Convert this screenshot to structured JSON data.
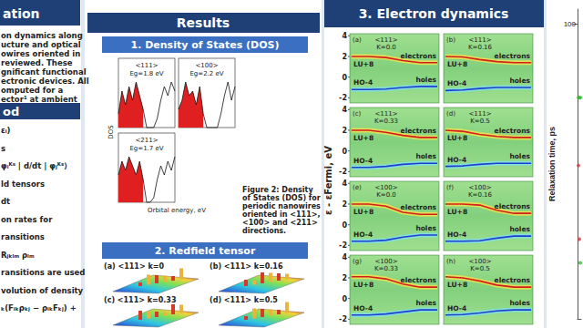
{
  "left_column": {
    "header": "ation",
    "intro_lines": [
      "on dynamics along",
      "ucture and optical",
      "owires oriented in",
      "reviewed. These",
      "gnificant functional",
      "ectronic devices. All",
      "omputed for a",
      "ector¹ at ambient"
    ],
    "method_header": "od",
    "method_lines": [
      "εᵢ)",
      "s",
      "φᵢᴷˢ | d/dt | φⱼᴷˢ⟩",
      "ld tensors",
      "dt",
      "on rates for",
      "ransitions",
      "Rⱼₖₗₘ ρₗₘ",
      "ransitions are used",
      "volution of density",
      "ₖ(Fᵢₖρₖⱼ − ρᵢₖFₖⱼ) +"
    ]
  },
  "results_header": "Results",
  "dos": {
    "title": "1. Density of States (DOS)",
    "ylabel": "DOS",
    "xlabel": "Orbital energy, eV",
    "energies": [
      -4,
      -3.5,
      -3,
      -2.5,
      -2,
      -1.5,
      -1,
      -0.5,
      0,
      0.5,
      1,
      1.5,
      2,
      2.5,
      3,
      3.5,
      4
    ],
    "panels": [
      {
        "label": "<111>",
        "gap": "Eg=1.8 eV",
        "filled": [
          0.3,
          0.8,
          0.5,
          0.9,
          0.6,
          1.0,
          0.7,
          0.4,
          null,
          null,
          null,
          null,
          null,
          null,
          null,
          null,
          null
        ],
        "line": [
          0.3,
          0.8,
          0.5,
          0.9,
          0.6,
          1.0,
          0.7,
          0.4,
          0,
          0,
          0,
          0.2,
          0.6,
          0.9,
          0.7,
          1.0,
          0.8
        ]
      },
      {
        "label": "<100>",
        "gap": "Eg=2.2 eV",
        "filled": [
          0.4,
          0.6,
          1.0,
          0.7,
          0.8,
          0.5,
          0.9,
          0.3,
          null,
          null,
          null,
          null,
          null,
          null,
          null,
          null,
          null
        ],
        "line": [
          0.4,
          0.6,
          1.0,
          0.7,
          0.8,
          0.5,
          0.9,
          0.3,
          0,
          0,
          0,
          0,
          0.3,
          0.7,
          1.0,
          0.6,
          0.9
        ]
      },
      {
        "label": "<211>",
        "gap": "Eg=1.7 eV",
        "filled": [
          0.6,
          0.9,
          0.7,
          1.0,
          0.8,
          0.6,
          0.9,
          0.5,
          null,
          null,
          null,
          null,
          null,
          null,
          null,
          null,
          null
        ],
        "line": [
          0.6,
          0.9,
          0.7,
          1.0,
          0.8,
          0.6,
          0.9,
          0.5,
          0,
          0,
          0.1,
          0.5,
          0.8,
          0.6,
          0.9,
          0.7,
          1.0
        ]
      }
    ],
    "caption": "Figure 2: Density of States (DOS) for periodic nanowires oriented in <111>, <100> and <211> directions."
  },
  "redfield": {
    "title": "2. Redfield tensor",
    "panels": [
      "(a) <111> k=0",
      "(b) <111> k=0.16",
      "(c) <111> k=0.33",
      "(d) <111> k=0.5"
    ]
  },
  "electron_dynamics": {
    "title": "3. Electron dynamics",
    "ylabel": "ε - εFermi, eV",
    "ylim": [
      -2.5,
      4.2
    ],
    "yticks": [
      4,
      2,
      0,
      -2
    ],
    "electron_label": "electrons",
    "hole_label": "holes",
    "electron_level": "LU+8",
    "hole_level": "HO-4",
    "panels": [
      {
        "tag": "(a)",
        "direction": "<111>",
        "k": "K=0.0",
        "electrons": [
          2.0,
          2.0,
          1.9,
          1.6,
          1.4,
          1.4
        ],
        "holes": [
          -1.2,
          -1.2,
          -1.15,
          -1.0,
          -0.9,
          -0.9
        ]
      },
      {
        "tag": "(b)",
        "direction": "<111>",
        "k": "K=0.16",
        "electrons": [
          2.0,
          1.95,
          1.7,
          1.5,
          1.4,
          1.4
        ],
        "holes": [
          -1.3,
          -1.25,
          -1.1,
          -1.0,
          -1.0,
          -1.0
        ]
      },
      {
        "tag": "(c)",
        "direction": "<111>",
        "k": "K=0.33",
        "electrons": [
          2.0,
          2.0,
          1.8,
          1.5,
          1.3,
          1.3
        ],
        "holes": [
          -1.6,
          -1.6,
          -1.5,
          -1.3,
          -1.2,
          -1.2
        ]
      },
      {
        "tag": "(d)",
        "direction": "<111>",
        "k": "K=0.5",
        "electrons": [
          2.0,
          1.9,
          1.6,
          1.4,
          1.3,
          1.3
        ],
        "holes": [
          -1.5,
          -1.45,
          -1.3,
          -1.2,
          -1.2,
          -1.2
        ]
      },
      {
        "tag": "(e)",
        "direction": "<100>",
        "k": "K=0.0",
        "electrons": [
          2.0,
          2.0,
          1.8,
          1.2,
          1.0,
          1.0
        ],
        "holes": [
          -1.6,
          -1.6,
          -1.5,
          -1.2,
          -1.0,
          -1.0
        ]
      },
      {
        "tag": "(f)",
        "direction": "<100>",
        "k": "K=0.16",
        "electrons": [
          2.0,
          2.0,
          1.9,
          1.4,
          1.1,
          1.1
        ],
        "holes": [
          -1.6,
          -1.6,
          -1.55,
          -1.3,
          -1.1,
          -1.1
        ]
      },
      {
        "tag": "(g)",
        "direction": "<100>",
        "k": "K=0.33",
        "electrons": [
          2.1,
          2.1,
          1.9,
          1.4,
          1.1,
          1.1
        ],
        "holes": [
          -1.6,
          -1.6,
          -1.5,
          -1.3,
          -1.1,
          -1.1
        ]
      },
      {
        "tag": "(h)",
        "direction": "<100>",
        "k": "K=0.5",
        "electrons": [
          2.1,
          2.0,
          1.7,
          1.3,
          1.1,
          1.1
        ],
        "holes": [
          -1.6,
          -1.55,
          -1.4,
          -1.2,
          -1.1,
          -1.1
        ]
      }
    ]
  },
  "chart_data": {
    "type": "scatter",
    "ylabel": "Relaxation time, ps",
    "xlim": [
      0,
      4
    ],
    "ylim": [
      0,
      105
    ],
    "yticks": [
      100
    ],
    "tick_labels": "y",
    "series": [
      {
        "color": "#33bb33",
        "x": [
          1,
          2,
          3,
          3
        ],
        "values": [
          75,
          75,
          75,
          19
        ]
      },
      {
        "color": "#dd3333",
        "x": [
          1,
          2
        ],
        "values": [
          52,
          27
        ]
      }
    ]
  }
}
